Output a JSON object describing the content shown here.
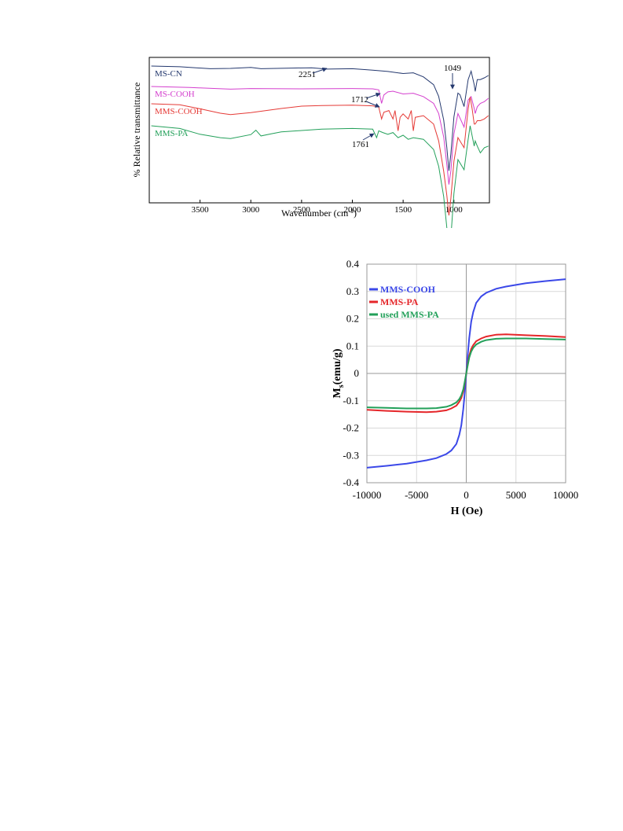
{
  "chart_data": [
    {
      "type": "line",
      "xlabel": "Wavenumber (cm",
      "xlabel_sup": "-1",
      "xlabel_suffix": ")",
      "ylabel": "% Relative transmittance",
      "xlim": [
        4000,
        650
      ],
      "x_reversed": true,
      "x_ticks": [
        3500,
        3000,
        2500,
        2000,
        1500,
        1000
      ],
      "grid": false,
      "series": [
        {
          "name": "MS-CN",
          "color": "#24386e",
          "points": [
            [
              3980,
              0.0
            ],
            [
              3700,
              0.2
            ],
            [
              3400,
              0.8
            ],
            [
              3200,
              0.7
            ],
            [
              3000,
              0.4
            ],
            [
              2900,
              0.8
            ],
            [
              2600,
              0.6
            ],
            [
              2400,
              0.5
            ],
            [
              2251,
              0.9
            ],
            [
              2000,
              0.8
            ],
            [
              1800,
              1.2
            ],
            [
              1650,
              1.6
            ],
            [
              1500,
              2.2
            ],
            [
              1400,
              2.0
            ],
            [
              1300,
              3.2
            ],
            [
              1200,
              5.5
            ],
            [
              1150,
              9.0
            ],
            [
              1100,
              16.0
            ],
            [
              1070,
              24.0
            ],
            [
              1049,
              31.0
            ],
            [
              1030,
              26.0
            ],
            [
              1000,
              15.0
            ],
            [
              960,
              8.0
            ],
            [
              940,
              8.5
            ],
            [
              900,
              12.0
            ],
            [
              860,
              4.0
            ],
            [
              830,
              1.5
            ],
            [
              800,
              5.5
            ],
            [
              790,
              7.5
            ],
            [
              770,
              4.0
            ],
            [
              740,
              4.0
            ],
            [
              700,
              3.5
            ],
            [
              660,
              2.8
            ]
          ]
        },
        {
          "name": "MS-COOH",
          "color": "#d43fce",
          "points": [
            [
              3980,
              0.0
            ],
            [
              3600,
              0.3
            ],
            [
              3200,
              0.8
            ],
            [
              3000,
              0.6
            ],
            [
              2500,
              0.7
            ],
            [
              2000,
              0.6
            ],
            [
              1800,
              0.7
            ],
            [
              1740,
              1.0
            ],
            [
              1712,
              5.0
            ],
            [
              1690,
              2.5
            ],
            [
              1650,
              1.6
            ],
            [
              1600,
              1.4
            ],
            [
              1500,
              2.2
            ],
            [
              1400,
              2.0
            ],
            [
              1300,
              3.0
            ],
            [
              1200,
              5.0
            ],
            [
              1150,
              8.0
            ],
            [
              1100,
              15.0
            ],
            [
              1070,
              23.0
            ],
            [
              1049,
              29.0
            ],
            [
              1030,
              25.0
            ],
            [
              1000,
              14.0
            ],
            [
              960,
              8.0
            ],
            [
              900,
              12.0
            ],
            [
              860,
              4.0
            ],
            [
              830,
              3.0
            ],
            [
              800,
              6.5
            ],
            [
              790,
              8.0
            ],
            [
              770,
              6.0
            ],
            [
              740,
              5.0
            ],
            [
              700,
              4.5
            ],
            [
              660,
              3.5
            ]
          ]
        },
        {
          "name": "MMS-COOH",
          "color": "#e53a36",
          "points": [
            [
              3980,
              0.0
            ],
            [
              3700,
              0.3
            ],
            [
              3500,
              1.5
            ],
            [
              3300,
              2.8
            ],
            [
              3200,
              3.2
            ],
            [
              3000,
              2.6
            ],
            [
              2900,
              2.2
            ],
            [
              2700,
              1.4
            ],
            [
              2500,
              0.7
            ],
            [
              2300,
              0.5
            ],
            [
              2000,
              0.4
            ],
            [
              1800,
              0.6
            ],
            [
              1740,
              1.0
            ],
            [
              1712,
              4.5
            ],
            [
              1690,
              2.5
            ],
            [
              1640,
              2.0
            ],
            [
              1600,
              4.5
            ],
            [
              1580,
              2.0
            ],
            [
              1550,
              8.0
            ],
            [
              1530,
              4.0
            ],
            [
              1500,
              3.0
            ],
            [
              1450,
              4.5
            ],
            [
              1420,
              2.0
            ],
            [
              1400,
              8.0
            ],
            [
              1380,
              4.0
            ],
            [
              1300,
              3.5
            ],
            [
              1200,
              6.0
            ],
            [
              1150,
              11.0
            ],
            [
              1100,
              20.0
            ],
            [
              1070,
              27.0
            ],
            [
              1049,
              33.0
            ],
            [
              1030,
              28.0
            ],
            [
              1000,
              17.0
            ],
            [
              960,
              10.0
            ],
            [
              900,
              13.0
            ],
            [
              860,
              1.5
            ],
            [
              840,
              -2.0
            ],
            [
              820,
              1.5
            ],
            [
              800,
              6.0
            ],
            [
              790,
              6.0
            ],
            [
              770,
              5.0
            ],
            [
              740,
              5.0
            ],
            [
              700,
              4.5
            ],
            [
              660,
              3.5
            ]
          ]
        },
        {
          "name": "MMS-PA",
          "color": "#23a05a",
          "points": [
            [
              3980,
              0.0
            ],
            [
              3700,
              0.8
            ],
            [
              3500,
              2.5
            ],
            [
              3300,
              3.5
            ],
            [
              3200,
              3.8
            ],
            [
              3000,
              2.6
            ],
            [
              2950,
              1.3
            ],
            [
              2900,
              3.0
            ],
            [
              2800,
              2.4
            ],
            [
              2700,
              1.8
            ],
            [
              2500,
              1.4
            ],
            [
              2300,
              1.0
            ],
            [
              2000,
              0.8
            ],
            [
              1800,
              1.0
            ],
            [
              1761,
              3.5
            ],
            [
              1740,
              1.5
            ],
            [
              1700,
              2.0
            ],
            [
              1650,
              2.5
            ],
            [
              1600,
              2.0
            ],
            [
              1550,
              3.5
            ],
            [
              1500,
              2.8
            ],
            [
              1450,
              4.0
            ],
            [
              1400,
              3.5
            ],
            [
              1300,
              4.0
            ],
            [
              1200,
              7.0
            ],
            [
              1150,
              12.0
            ],
            [
              1100,
              21.0
            ],
            [
              1070,
              30.0
            ],
            [
              1049,
              37.0
            ],
            [
              1030,
              33.0
            ],
            [
              1000,
              20.0
            ],
            [
              960,
              10.0
            ],
            [
              900,
              13.0
            ],
            [
              860,
              4.0
            ],
            [
              840,
              0.0
            ],
            [
              820,
              3.0
            ],
            [
              800,
              6.0
            ],
            [
              790,
              4.5
            ],
            [
              770,
              6.0
            ],
            [
              740,
              8.0
            ],
            [
              700,
              6.5
            ],
            [
              660,
              6.0
            ]
          ]
        }
      ],
      "annotations": [
        {
          "text": "2251",
          "x": 2251,
          "series": "MS-CN"
        },
        {
          "text": "1049",
          "x": 1049,
          "series": "MS-CN"
        },
        {
          "text": "1712",
          "x": 1712,
          "series": "MMS-COOH"
        },
        {
          "text": "1761",
          "x": 1761,
          "series": "MMS-PA"
        }
      ]
    },
    {
      "type": "line",
      "xlabel": "H (Oe)",
      "ylabel": "M",
      "ylabel_sub": "s",
      "ylabel_suffix": "(emu/g)",
      "xlim": [
        -10000,
        10000
      ],
      "ylim": [
        -0.4,
        0.4
      ],
      "x_ticks": [
        -10000,
        -5000,
        0,
        5000,
        10000
      ],
      "x_tick_labels": [
        "-10000",
        "-5000",
        "0",
        "5000",
        "10000"
      ],
      "y_ticks": [
        -0.4,
        -0.3,
        -0.2,
        -0.1,
        0,
        0.1,
        0.2,
        0.3,
        0.4
      ],
      "y_tick_labels": [
        "-0.4",
        "-0.3",
        "-0.2",
        "-0.1",
        "0",
        "0.1",
        "0.2",
        "0.3",
        "0.4"
      ],
      "grid": true,
      "legend_position": "top-left",
      "series": [
        {
          "name": "MMS-COOH",
          "color": "#3b48e8",
          "x": [
            -10000,
            -8000,
            -6000,
            -4000,
            -3000,
            -2000,
            -1500,
            -1000,
            -700,
            -500,
            -300,
            -150,
            0,
            150,
            300,
            500,
            700,
            1000,
            1500,
            2000,
            3000,
            4000,
            6000,
            8000,
            10000
          ],
          "y": [
            -0.345,
            -0.338,
            -0.33,
            -0.318,
            -0.31,
            -0.295,
            -0.282,
            -0.258,
            -0.225,
            -0.19,
            -0.13,
            -0.07,
            0.0,
            0.07,
            0.13,
            0.19,
            0.225,
            0.258,
            0.282,
            0.295,
            0.31,
            0.318,
            0.33,
            0.338,
            0.345
          ]
        },
        {
          "name": "MMS-PA",
          "color": "#e5262a",
          "x": [
            -10000,
            -8000,
            -6000,
            -4000,
            -3000,
            -2000,
            -1500,
            -1000,
            -700,
            -500,
            -300,
            -150,
            0,
            150,
            300,
            500,
            700,
            1000,
            1500,
            2000,
            3000,
            4000,
            6000,
            8000,
            10000
          ],
          "y": [
            -0.133,
            -0.137,
            -0.14,
            -0.142,
            -0.14,
            -0.135,
            -0.128,
            -0.118,
            -0.104,
            -0.09,
            -0.065,
            -0.035,
            0.0,
            0.035,
            0.065,
            0.09,
            0.104,
            0.118,
            0.128,
            0.135,
            0.142,
            0.143,
            0.14,
            0.137,
            0.133
          ]
        },
        {
          "name": "used MMS-PA",
          "color": "#23a05a",
          "x": [
            -10000,
            -8000,
            -6000,
            -4000,
            -3000,
            -2000,
            -1500,
            -1000,
            -700,
            -500,
            -300,
            -150,
            0,
            150,
            300,
            500,
            700,
            1000,
            1500,
            2000,
            3000,
            4000,
            6000,
            8000,
            10000
          ],
          "y": [
            -0.124,
            -0.126,
            -0.128,
            -0.128,
            -0.127,
            -0.122,
            -0.116,
            -0.106,
            -0.094,
            -0.08,
            -0.058,
            -0.03,
            0.0,
            0.03,
            0.058,
            0.08,
            0.094,
            0.106,
            0.116,
            0.122,
            0.127,
            0.128,
            0.128,
            0.126,
            0.124
          ]
        }
      ]
    }
  ]
}
